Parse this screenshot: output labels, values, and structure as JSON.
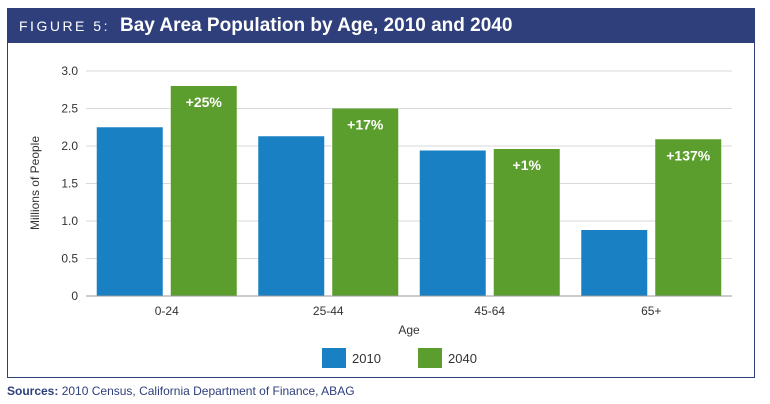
{
  "figure": {
    "label": "FIGURE 5:",
    "title": "Bay Area Population by Age, 2010 and 2040"
  },
  "colors": {
    "header": "#2e3f7c",
    "series_2010": "#1a80c4",
    "series_2040": "#5c9e2e",
    "grid": "#d9d9d9",
    "axis_text": "#333333"
  },
  "chart_data": {
    "type": "bar",
    "title": "Bay Area Population by Age, 2010 and 2040",
    "xlabel": "Age",
    "ylabel": "Millions of People",
    "categories": [
      "0-24",
      "25-44",
      "45-64",
      "65+"
    ],
    "series": [
      {
        "name": "2010",
        "values": [
          2.25,
          2.13,
          1.94,
          0.88
        ]
      },
      {
        "name": "2040",
        "values": [
          2.8,
          2.5,
          1.96,
          2.09
        ]
      }
    ],
    "annotations": [
      "+25%",
      "+17%",
      "+1%",
      "+137%"
    ],
    "ylim": [
      0,
      3.0
    ],
    "yticks": [
      0,
      0.5,
      1.0,
      1.5,
      2.0,
      2.5,
      3.0
    ],
    "ytick_labels": [
      "0",
      "0.5",
      "1.0",
      "1.5",
      "2.0",
      "2.5",
      "3.0"
    ],
    "grid": true,
    "legend": "bottom-center"
  },
  "sources": {
    "label": "Sources:",
    "text": "2010 Census, California Department of Finance, ABAG"
  }
}
